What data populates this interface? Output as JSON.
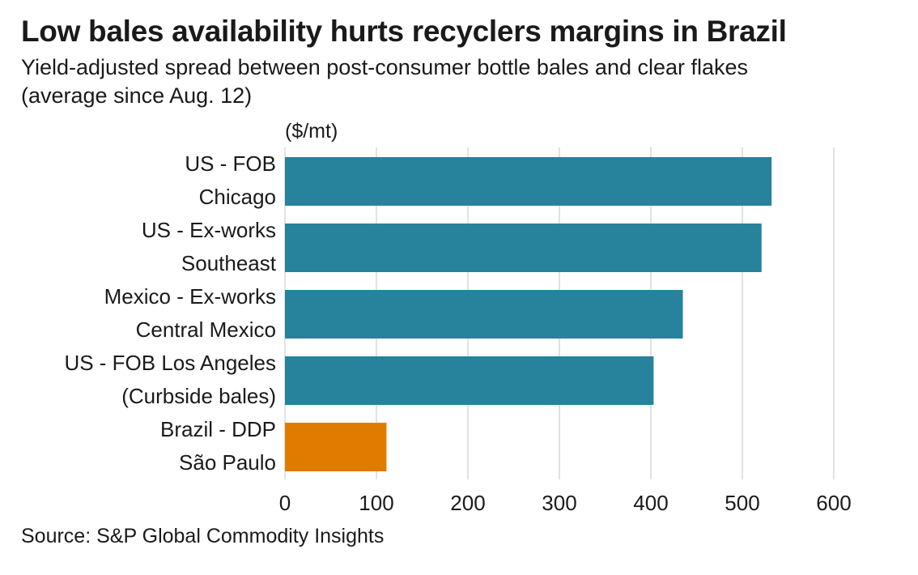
{
  "title": "Low bales availability hurts recyclers margins in Brazil",
  "subtitle_lines": [
    "Yield-adjusted spread between post-consumer bottle bales and clear flakes",
    "(average since Aug. 12)"
  ],
  "source": "Source: S&P Global Commodity Insights",
  "colors": {
    "primary": "#26839b",
    "highlight": "#e07b00",
    "grid": "#d9d9d9",
    "text": "#1a1a1a"
  },
  "chart_data": {
    "type": "bar",
    "orientation": "horizontal",
    "unit_label": "($/mt)",
    "categories": [
      [
        "US - FOB",
        "Chicago"
      ],
      [
        "US - Ex-works",
        "Southeast"
      ],
      [
        "Mexico - Ex-works",
        "Central Mexico"
      ],
      [
        "US - FOB Los Angeles",
        "(Curbside bales)"
      ],
      [
        "Brazil - DDP",
        "São Paulo"
      ]
    ],
    "values": [
      532,
      521,
      435,
      403,
      111
    ],
    "highlight_index": 4,
    "xlim": [
      0,
      600
    ],
    "xticks": [
      0,
      100,
      200,
      300,
      400,
      500,
      600
    ],
    "grid": true
  }
}
